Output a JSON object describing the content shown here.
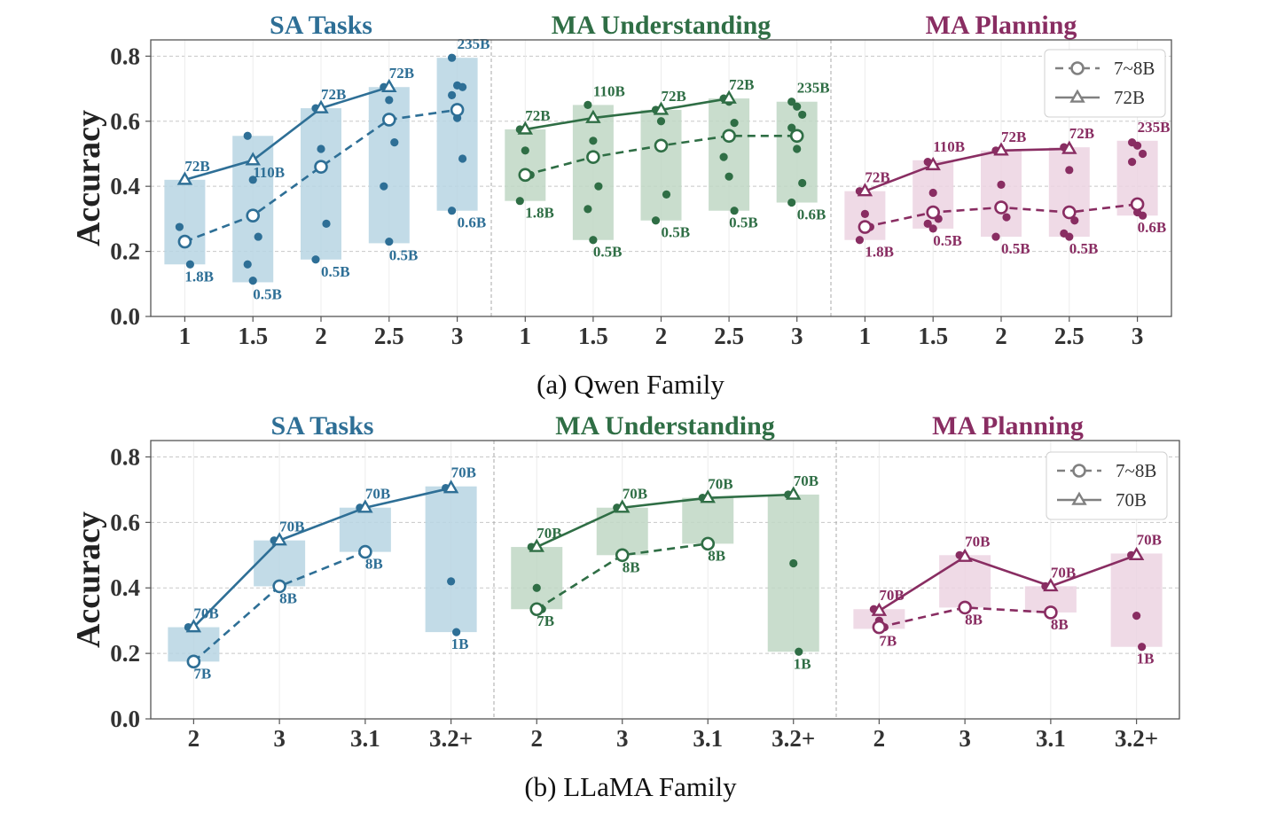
{
  "colors": {
    "sa": "#2e6f96",
    "ma_u": "#2f6e45",
    "ma_p": "#892d62",
    "sa_box": "#b7d5e3",
    "ma_u_box": "#bfd7c4",
    "ma_p_box": "#ecd3e2",
    "legend": "#808080"
  },
  "chart_data": [
    {
      "type": "line",
      "caption": "(a) Qwen Family",
      "ylabel": "Accuracy",
      "ylim": [
        0,
        0.85
      ],
      "yticks": [
        "0.0",
        "0.2",
        "0.4",
        "0.6",
        "0.8"
      ],
      "legend": {
        "position": "top-right",
        "entries": [
          "7~8B",
          "72B"
        ]
      },
      "panels": [
        {
          "title": "SA Tasks",
          "color_key": "sa",
          "categories": [
            "1",
            "1.5",
            "2",
            "2.5",
            "3"
          ],
          "series": [
            {
              "name": "7~8B",
              "style": "dashed-circle",
              "values": [
                0.23,
                0.31,
                0.46,
                0.605,
                0.635
              ]
            },
            {
              "name": "72B",
              "style": "solid-triangle",
              "values": [
                0.42,
                0.48,
                0.64,
                0.705,
                null
              ]
            }
          ],
          "range_boxes": [
            [
              0.16,
              0.42
            ],
            [
              0.105,
              0.555
            ],
            [
              0.175,
              0.64
            ],
            [
              0.225,
              0.705
            ],
            [
              0.325,
              0.795
            ]
          ],
          "scatter": [
            [
              0.275,
              0.23,
              0.16
            ],
            [
              0.555,
              0.42,
              0.245,
              0.16,
              0.11
            ],
            [
              0.64,
              0.515,
              0.285,
              0.175
            ],
            [
              0.705,
              0.665,
              0.535,
              0.4,
              0.23
            ],
            [
              0.795,
              0.71,
              0.705,
              0.68,
              0.61,
              0.485,
              0.325
            ]
          ],
          "labels": [
            {
              "cat": 0,
              "y": 0.42,
              "text": "72B"
            },
            {
              "cat": 0,
              "y": 0.16,
              "text": "1.8B"
            },
            {
              "cat": 1,
              "y": 0.48,
              "text": "110B"
            },
            {
              "cat": 1,
              "y": 0.105,
              "text": "0.5B"
            },
            {
              "cat": 2,
              "y": 0.64,
              "text": "72B"
            },
            {
              "cat": 2,
              "y": 0.175,
              "text": "0.5B"
            },
            {
              "cat": 3,
              "y": 0.705,
              "text": "72B"
            },
            {
              "cat": 3,
              "y": 0.225,
              "text": "0.5B"
            },
            {
              "cat": 4,
              "y": 0.795,
              "text": "235B"
            },
            {
              "cat": 4,
              "y": 0.325,
              "text": "0.6B"
            }
          ]
        },
        {
          "title": "MA Understanding",
          "color_key": "ma_u",
          "categories": [
            "1",
            "1.5",
            "2",
            "2.5",
            "3"
          ],
          "series": [
            {
              "name": "7~8B",
              "style": "dashed-circle",
              "values": [
                0.435,
                0.49,
                0.525,
                0.555,
                0.555
              ]
            },
            {
              "name": "72B",
              "style": "solid-triangle",
              "values": [
                0.575,
                0.61,
                0.635,
                0.67,
                null
              ]
            }
          ],
          "range_boxes": [
            [
              0.355,
              0.575
            ],
            [
              0.235,
              0.65
            ],
            [
              0.295,
              0.635
            ],
            [
              0.325,
              0.67
            ],
            [
              0.35,
              0.66
            ]
          ],
          "scatter": [
            [
              0.575,
              0.51,
              0.435,
              0.355
            ],
            [
              0.65,
              0.54,
              0.4,
              0.33,
              0.235
            ],
            [
              0.635,
              0.6,
              0.375,
              0.295
            ],
            [
              0.67,
              0.66,
              0.595,
              0.49,
              0.43,
              0.325
            ],
            [
              0.66,
              0.645,
              0.62,
              0.58,
              0.515,
              0.41,
              0.35
            ]
          ],
          "labels": [
            {
              "cat": 0,
              "y": 0.575,
              "text": "72B"
            },
            {
              "cat": 0,
              "y": 0.355,
              "text": "1.8B"
            },
            {
              "cat": 1,
              "y": 0.65,
              "text": "110B"
            },
            {
              "cat": 1,
              "y": 0.235,
              "text": "0.5B"
            },
            {
              "cat": 2,
              "y": 0.635,
              "text": "72B"
            },
            {
              "cat": 2,
              "y": 0.295,
              "text": "0.5B"
            },
            {
              "cat": 3,
              "y": 0.67,
              "text": "72B"
            },
            {
              "cat": 3,
              "y": 0.325,
              "text": "0.5B"
            },
            {
              "cat": 4,
              "y": 0.66,
              "text": "235B"
            },
            {
              "cat": 4,
              "y": 0.35,
              "text": "0.6B"
            }
          ]
        },
        {
          "title": "MA Planning",
          "color_key": "ma_p",
          "categories": [
            "1",
            "1.5",
            "2",
            "2.5",
            "3"
          ],
          "series": [
            {
              "name": "7~8B",
              "style": "dashed-circle",
              "values": [
                0.275,
                0.32,
                0.335,
                0.32,
                0.345
              ]
            },
            {
              "name": "72B",
              "style": "solid-triangle",
              "values": [
                0.385,
                0.465,
                0.51,
                0.515,
                null
              ]
            }
          ],
          "range_boxes": [
            [
              0.235,
              0.385
            ],
            [
              0.27,
              0.48
            ],
            [
              0.245,
              0.51
            ],
            [
              0.245,
              0.52
            ],
            [
              0.31,
              0.54
            ]
          ],
          "scatter": [
            [
              0.385,
              0.315,
              0.275,
              0.235
            ],
            [
              0.475,
              0.38,
              0.3,
              0.285,
              0.27
            ],
            [
              0.51,
              0.405,
              0.305,
              0.245
            ],
            [
              0.52,
              0.45,
              0.295,
              0.255,
              0.245
            ],
            [
              0.535,
              0.525,
              0.5,
              0.475,
              0.32,
              0.31
            ]
          ],
          "labels": [
            {
              "cat": 0,
              "y": 0.385,
              "text": "72B"
            },
            {
              "cat": 0,
              "y": 0.235,
              "text": "1.8B"
            },
            {
              "cat": 1,
              "y": 0.48,
              "text": "110B"
            },
            {
              "cat": 1,
              "y": 0.27,
              "text": "0.5B"
            },
            {
              "cat": 2,
              "y": 0.51,
              "text": "72B"
            },
            {
              "cat": 2,
              "y": 0.245,
              "text": "0.5B"
            },
            {
              "cat": 3,
              "y": 0.52,
              "text": "72B"
            },
            {
              "cat": 3,
              "y": 0.245,
              "text": "0.5B"
            },
            {
              "cat": 4,
              "y": 0.54,
              "text": "235B"
            },
            {
              "cat": 4,
              "y": 0.31,
              "text": "0.6B"
            }
          ]
        }
      ]
    },
    {
      "type": "line",
      "caption": "(b) LLaMA Family",
      "ylabel": "Accuracy",
      "ylim": [
        0,
        0.85
      ],
      "yticks": [
        "0.0",
        "0.2",
        "0.4",
        "0.6",
        "0.8"
      ],
      "legend": {
        "position": "top-right",
        "entries": [
          "7~8B",
          "70B"
        ]
      },
      "panels": [
        {
          "title": "SA Tasks",
          "color_key": "sa",
          "categories": [
            "2",
            "3",
            "3.1",
            "3.2+"
          ],
          "series": [
            {
              "name": "7~8B",
              "style": "dashed-circle",
              "values": [
                0.175,
                0.405,
                0.51,
                null
              ]
            },
            {
              "name": "70B",
              "style": "solid-triangle",
              "values": [
                0.28,
                0.545,
                0.645,
                0.705
              ]
            }
          ],
          "range_boxes": [
            [
              0.175,
              0.28
            ],
            [
              0.405,
              0.545
            ],
            [
              0.51,
              0.645
            ],
            [
              0.265,
              0.71
            ]
          ],
          "scatter": [
            [
              0.28,
              0.175
            ],
            [
              0.545,
              0.405
            ],
            [
              0.645,
              0.51
            ],
            [
              0.705,
              0.42,
              0.265
            ]
          ],
          "labels": [
            {
              "cat": 0,
              "y": 0.28,
              "text": "70B"
            },
            {
              "cat": 0,
              "y": 0.175,
              "text": "7B"
            },
            {
              "cat": 1,
              "y": 0.545,
              "text": "70B"
            },
            {
              "cat": 1,
              "y": 0.405,
              "text": "8B"
            },
            {
              "cat": 2,
              "y": 0.645,
              "text": "70B"
            },
            {
              "cat": 2,
              "y": 0.51,
              "text": "8B"
            },
            {
              "cat": 3,
              "y": 0.71,
              "text": "70B"
            },
            {
              "cat": 3,
              "y": 0.265,
              "text": "1B"
            }
          ]
        },
        {
          "title": "MA Understanding",
          "color_key": "ma_u",
          "categories": [
            "2",
            "3",
            "3.1",
            "3.2+"
          ],
          "series": [
            {
              "name": "7~8B",
              "style": "dashed-circle",
              "values": [
                0.335,
                0.5,
                0.535,
                null
              ]
            },
            {
              "name": "70B",
              "style": "solid-triangle",
              "values": [
                0.525,
                0.645,
                0.675,
                0.685
              ]
            }
          ],
          "range_boxes": [
            [
              0.335,
              0.525
            ],
            [
              0.5,
              0.645
            ],
            [
              0.535,
              0.675
            ],
            [
              0.205,
              0.685
            ]
          ],
          "scatter": [
            [
              0.525,
              0.4,
              0.335
            ],
            [
              0.645,
              0.5
            ],
            [
              0.675,
              0.535
            ],
            [
              0.685,
              0.475,
              0.205
            ]
          ],
          "labels": [
            {
              "cat": 0,
              "y": 0.525,
              "text": "70B"
            },
            {
              "cat": 0,
              "y": 0.335,
              "text": "7B"
            },
            {
              "cat": 1,
              "y": 0.645,
              "text": "70B"
            },
            {
              "cat": 1,
              "y": 0.5,
              "text": "8B"
            },
            {
              "cat": 2,
              "y": 0.675,
              "text": "70B"
            },
            {
              "cat": 2,
              "y": 0.535,
              "text": "8B"
            },
            {
              "cat": 3,
              "y": 0.685,
              "text": "70B"
            },
            {
              "cat": 3,
              "y": 0.205,
              "text": "1B"
            }
          ]
        },
        {
          "title": "MA Planning",
          "color_key": "ma_p",
          "categories": [
            "2",
            "3",
            "3.1",
            "3.2+"
          ],
          "series": [
            {
              "name": "7~8B",
              "style": "dashed-circle",
              "values": [
                0.28,
                0.34,
                0.325,
                null
              ]
            },
            {
              "name": "70B",
              "style": "solid-triangle",
              "values": [
                0.33,
                0.495,
                0.405,
                0.5
              ]
            }
          ],
          "range_boxes": [
            [
              0.275,
              0.335
            ],
            [
              0.34,
              0.5
            ],
            [
              0.325,
              0.405
            ],
            [
              0.22,
              0.505
            ]
          ],
          "scatter": [
            [
              0.335,
              0.3,
              0.28
            ],
            [
              0.5,
              0.34
            ],
            [
              0.405,
              0.325
            ],
            [
              0.5,
              0.315,
              0.22
            ]
          ],
          "labels": [
            {
              "cat": 0,
              "y": 0.335,
              "text": "70B"
            },
            {
              "cat": 0,
              "y": 0.275,
              "text": "7B"
            },
            {
              "cat": 1,
              "y": 0.5,
              "text": "70B"
            },
            {
              "cat": 1,
              "y": 0.34,
              "text": "8B"
            },
            {
              "cat": 2,
              "y": 0.405,
              "text": "70B"
            },
            {
              "cat": 2,
              "y": 0.325,
              "text": "8B"
            },
            {
              "cat": 3,
              "y": 0.505,
              "text": "70B"
            },
            {
              "cat": 3,
              "y": 0.22,
              "text": "1B"
            }
          ]
        }
      ]
    }
  ]
}
